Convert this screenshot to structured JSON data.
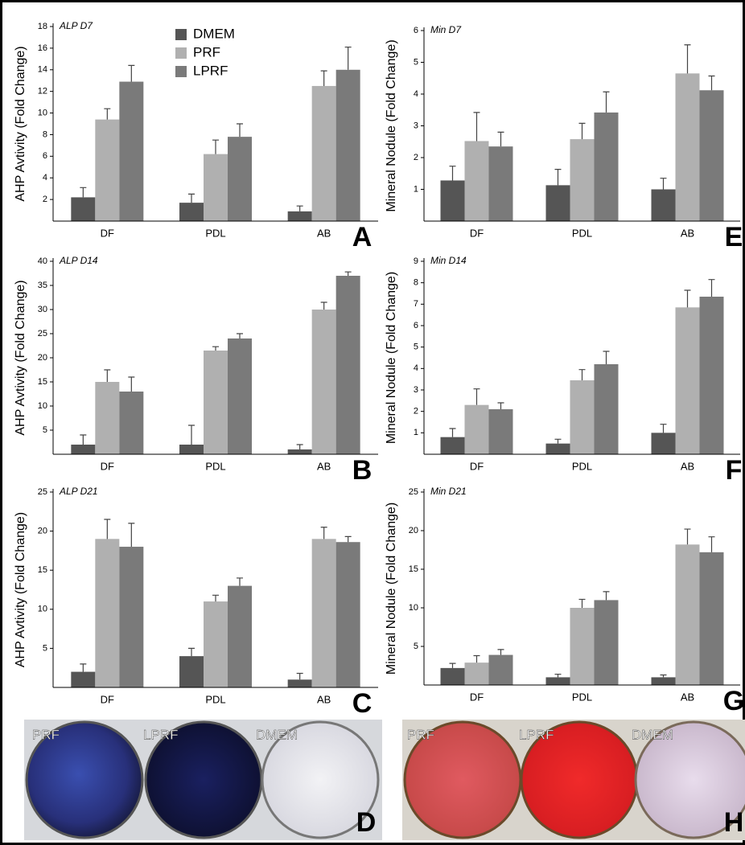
{
  "chart_data": [
    {
      "type": "bar",
      "title": "ALP D7",
      "panel_label": "A",
      "ylabel": "AHP Avtivity (Fold Change)",
      "legend": "top-center",
      "categories": [
        "DF",
        "PDL",
        "AB"
      ],
      "ylim": [
        0,
        18
      ],
      "yticks": [
        2,
        4,
        6,
        8,
        10,
        12,
        14,
        16,
        18
      ],
      "series": [
        {
          "name": "DMEM",
          "color": "#555555",
          "values": [
            2.2,
            1.7,
            0.9
          ],
          "errors": [
            0.9,
            0.8,
            0.5
          ]
        },
        {
          "name": "PRF",
          "color": "#b0b0b0",
          "values": [
            9.4,
            6.2,
            12.5
          ],
          "errors": [
            1.0,
            1.3,
            1.4
          ]
        },
        {
          "name": "LPRF",
          "color": "#7a7a7a",
          "values": [
            12.9,
            7.8,
            14.0
          ],
          "errors": [
            1.5,
            1.2,
            2.1
          ]
        }
      ]
    },
    {
      "type": "bar",
      "title": "ALP D14",
      "panel_label": "B",
      "ylabel": "AHP Avtivity (Fold Change)",
      "categories": [
        "DF",
        "PDL",
        "AB"
      ],
      "ylim": [
        0,
        40
      ],
      "yticks": [
        5,
        10,
        15,
        20,
        25,
        30,
        35,
        40
      ],
      "series": [
        {
          "name": "DMEM",
          "color": "#555555",
          "values": [
            2,
            2,
            1
          ],
          "errors": [
            2,
            4,
            1
          ]
        },
        {
          "name": "PRF",
          "color": "#b0b0b0",
          "values": [
            15,
            21.5,
            30
          ],
          "errors": [
            2.5,
            0.8,
            1.5
          ]
        },
        {
          "name": "LPRF",
          "color": "#7a7a7a",
          "values": [
            13,
            24,
            37
          ],
          "errors": [
            3,
            1,
            0.8
          ]
        }
      ]
    },
    {
      "type": "bar",
      "title": "ALP D21",
      "panel_label": "C",
      "ylabel": "AHP Avtivity (Fold Change)",
      "categories": [
        "DF",
        "PDL",
        "AB"
      ],
      "ylim": [
        0,
        25
      ],
      "yticks": [
        5,
        10,
        15,
        20,
        25
      ],
      "series": [
        {
          "name": "DMEM",
          "color": "#555555",
          "values": [
            2,
            4,
            1
          ],
          "errors": [
            1,
            1,
            0.8
          ]
        },
        {
          "name": "PRF",
          "color": "#b0b0b0",
          "values": [
            19,
            11,
            19
          ],
          "errors": [
            2.5,
            0.8,
            1.5
          ]
        },
        {
          "name": "LPRF",
          "color": "#7a7a7a",
          "values": [
            18,
            13,
            18.6
          ],
          "errors": [
            3,
            1,
            0.7
          ]
        }
      ]
    },
    {
      "type": "bar",
      "title": "Min D7",
      "panel_label": "E",
      "ylabel": "Mineral Nodule (Fold Change)",
      "categories": [
        "DF",
        "PDL",
        "AB"
      ],
      "ylim": [
        0,
        6
      ],
      "yticks": [
        1,
        2,
        3,
        4,
        5,
        6
      ],
      "series": [
        {
          "name": "DMEM",
          "color": "#555555",
          "values": [
            1.28,
            1.13,
            1.0
          ],
          "errors": [
            0.45,
            0.5,
            0.35
          ]
        },
        {
          "name": "PRF",
          "color": "#b0b0b0",
          "values": [
            2.52,
            2.58,
            4.65
          ],
          "errors": [
            0.9,
            0.5,
            0.9
          ]
        },
        {
          "name": "LPRF",
          "color": "#7a7a7a",
          "values": [
            2.35,
            3.42,
            4.12
          ],
          "errors": [
            0.45,
            0.65,
            0.45
          ]
        }
      ]
    },
    {
      "type": "bar",
      "title": "Min D14",
      "panel_label": "F",
      "ylabel": "Mineral Nodule (Fold Change)",
      "categories": [
        "DF",
        "PDL",
        "AB"
      ],
      "ylim": [
        0,
        9
      ],
      "yticks": [
        1,
        2,
        3,
        4,
        5,
        6,
        7,
        8,
        9
      ],
      "series": [
        {
          "name": "DMEM",
          "color": "#555555",
          "values": [
            0.8,
            0.5,
            1.0
          ],
          "errors": [
            0.4,
            0.2,
            0.4
          ]
        },
        {
          "name": "PRF",
          "color": "#b0b0b0",
          "values": [
            2.3,
            3.45,
            6.85
          ],
          "errors": [
            0.75,
            0.5,
            0.8
          ]
        },
        {
          "name": "LPRF",
          "color": "#7a7a7a",
          "values": [
            2.1,
            4.2,
            7.35
          ],
          "errors": [
            0.3,
            0.6,
            0.8
          ]
        }
      ]
    },
    {
      "type": "bar",
      "title": "Min D21",
      "panel_label": "G",
      "ylabel": "Mineral Nodule (Fold Change)",
      "categories": [
        "DF",
        "PDL",
        "AB"
      ],
      "ylim": [
        0,
        25
      ],
      "yticks": [
        5,
        10,
        15,
        20,
        25
      ],
      "series": [
        {
          "name": "DMEM",
          "color": "#555555",
          "values": [
            2.2,
            1,
            1
          ],
          "errors": [
            0.6,
            0.4,
            0.3
          ]
        },
        {
          "name": "PRF",
          "color": "#b0b0b0",
          "values": [
            2.9,
            10,
            18.2
          ],
          "errors": [
            0.9,
            1.1,
            2.0
          ]
        },
        {
          "name": "LPRF",
          "color": "#7a7a7a",
          "values": [
            3.9,
            11,
            17.2
          ],
          "errors": [
            0.7,
            1.1,
            2.0
          ]
        }
      ]
    }
  ],
  "photos": [
    {
      "panel_label": "D",
      "labels": [
        "PRF",
        "LPRF",
        "DMEM"
      ]
    },
    {
      "panel_label": "H",
      "labels": [
        "PRF",
        "LPRF",
        "DMEM"
      ]
    }
  ]
}
